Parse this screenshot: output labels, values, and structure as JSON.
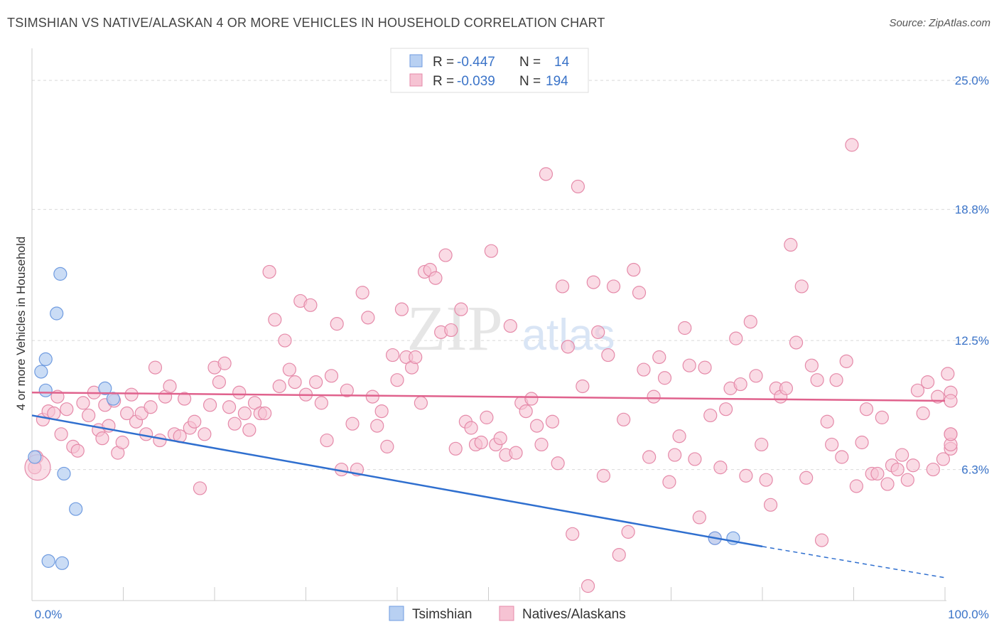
{
  "title": "TSIMSHIAN VS NATIVE/ALASKAN 4 OR MORE VEHICLES IN HOUSEHOLD CORRELATION CHART",
  "source": "Source: ZipAtlas.com",
  "watermark": {
    "zip": "ZIP",
    "atlas": "atlas"
  },
  "colors": {
    "blue_fill": "#b8d0f2",
    "blue_stroke": "#6f9be0",
    "blue_line": "#2f6fcf",
    "pink_fill": "#f6c3d3",
    "pink_stroke": "#e58aa9",
    "pink_line": "#e0628d",
    "grid": "#d9d9d9",
    "axis_text": "#3a73c8"
  },
  "legend": {
    "rows": [
      {
        "r_label": "R =",
        "r_value": "-0.447",
        "n_label": "N =",
        "n_value": "14"
      },
      {
        "r_label": "R =",
        "r_value": "-0.039",
        "n_label": "N =",
        "n_value": "194"
      }
    ],
    "bottom": [
      "Tsimshian",
      "Natives/Alaskans"
    ]
  },
  "chart_data": {
    "type": "scatter",
    "xlabel": "",
    "ylabel": "4 or more Vehicles in Household",
    "xlim": [
      0,
      100
    ],
    "ylim": [
      0,
      26.2
    ],
    "x_tick_labels": [
      {
        "v": 0,
        "label": "0.0%"
      },
      {
        "v": 100,
        "label": "100.0%"
      }
    ],
    "y_ticks": [
      {
        "v": 6.3,
        "label": "6.3%"
      },
      {
        "v": 12.5,
        "label": "12.5%"
      },
      {
        "v": 18.8,
        "label": "18.8%"
      },
      {
        "v": 25.0,
        "label": "25.0%"
      }
    ],
    "grid": true,
    "series": [
      {
        "name": "Tsimshian",
        "color": "#b8d0f2",
        "points": [
          [
            0.3,
            6.9
          ],
          [
            1.5,
            10.1
          ],
          [
            1.0,
            11.0
          ],
          [
            1.5,
            11.6
          ],
          [
            2.7,
            13.8
          ],
          [
            3.1,
            15.7
          ],
          [
            3.5,
            6.1
          ],
          [
            4.8,
            4.4
          ],
          [
            8.0,
            10.2
          ],
          [
            8.9,
            9.7
          ],
          [
            1.8,
            1.9
          ],
          [
            3.3,
            1.8
          ],
          [
            74.8,
            3.0
          ],
          [
            76.8,
            3.0
          ]
        ],
        "trend": {
          "x0": 0,
          "y0": 8.9,
          "x1": 80,
          "y1": 2.6,
          "dash_to": 100,
          "dash_y": 1.1
        }
      },
      {
        "name": "Natives/Alaskans",
        "color": "#f6c3d3",
        "points": [
          [
            0.3,
            6.4
          ],
          [
            0.5,
            6.9
          ],
          [
            1.2,
            8.7
          ],
          [
            1.8,
            9.1
          ],
          [
            2.4,
            9.0
          ],
          [
            2.8,
            9.8
          ],
          [
            3.2,
            8.0
          ],
          [
            3.8,
            9.2
          ],
          [
            4.5,
            7.4
          ],
          [
            5.0,
            7.2
          ],
          [
            5.6,
            9.5
          ],
          [
            6.2,
            8.9
          ],
          [
            6.8,
            10.0
          ],
          [
            7.3,
            8.2
          ],
          [
            7.7,
            7.8
          ],
          [
            8.0,
            9.4
          ],
          [
            8.4,
            8.4
          ],
          [
            9.0,
            9.6
          ],
          [
            9.4,
            7.1
          ],
          [
            9.9,
            7.6
          ],
          [
            10.4,
            9.0
          ],
          [
            10.9,
            9.9
          ],
          [
            11.4,
            8.6
          ],
          [
            12.0,
            9.0
          ],
          [
            12.5,
            8.0
          ],
          [
            13.0,
            9.3
          ],
          [
            13.5,
            11.2
          ],
          [
            14.0,
            7.7
          ],
          [
            14.6,
            9.8
          ],
          [
            15.1,
            10.3
          ],
          [
            15.6,
            8.0
          ],
          [
            16.2,
            7.9
          ],
          [
            16.7,
            9.7
          ],
          [
            17.3,
            8.3
          ],
          [
            17.8,
            8.6
          ],
          [
            18.4,
            5.4
          ],
          [
            18.9,
            8.0
          ],
          [
            19.5,
            9.4
          ],
          [
            20.0,
            11.2
          ],
          [
            20.5,
            10.5
          ],
          [
            21.1,
            11.4
          ],
          [
            21.6,
            9.3
          ],
          [
            22.2,
            8.5
          ],
          [
            22.7,
            10.0
          ],
          [
            23.3,
            9.0
          ],
          [
            23.8,
            8.2
          ],
          [
            24.4,
            9.5
          ],
          [
            25.0,
            9.0
          ],
          [
            25.5,
            9.0
          ],
          [
            26.0,
            15.8
          ],
          [
            26.6,
            13.5
          ],
          [
            27.1,
            10.3
          ],
          [
            27.7,
            12.5
          ],
          [
            28.2,
            11.1
          ],
          [
            28.8,
            10.5
          ],
          [
            29.4,
            14.4
          ],
          [
            30.0,
            9.9
          ],
          [
            30.5,
            14.2
          ],
          [
            31.1,
            10.5
          ],
          [
            31.7,
            9.5
          ],
          [
            32.3,
            7.7
          ],
          [
            32.8,
            10.8
          ],
          [
            33.4,
            13.3
          ],
          [
            33.9,
            6.3
          ],
          [
            34.5,
            10.1
          ],
          [
            35.1,
            8.5
          ],
          [
            35.6,
            6.3
          ],
          [
            36.2,
            14.8
          ],
          [
            36.8,
            13.6
          ],
          [
            37.3,
            9.8
          ],
          [
            37.8,
            8.4
          ],
          [
            38.3,
            9.1
          ],
          [
            38.9,
            7.4
          ],
          [
            39.5,
            11.8
          ],
          [
            40.0,
            10.6
          ],
          [
            40.5,
            14.0
          ],
          [
            41.0,
            11.7
          ],
          [
            41.6,
            11.2
          ],
          [
            42.0,
            11.7
          ],
          [
            42.6,
            9.5
          ],
          [
            43.0,
            15.8
          ],
          [
            43.6,
            15.9
          ],
          [
            44.2,
            15.5
          ],
          [
            44.8,
            12.9
          ],
          [
            45.3,
            16.6
          ],
          [
            45.9,
            13.0
          ],
          [
            46.4,
            7.3
          ],
          [
            47.0,
            14.0
          ],
          [
            47.5,
            8.6
          ],
          [
            48.1,
            8.3
          ],
          [
            48.6,
            7.5
          ],
          [
            49.2,
            7.6
          ],
          [
            49.8,
            8.8
          ],
          [
            50.3,
            16.8
          ],
          [
            50.8,
            7.5
          ],
          [
            51.3,
            7.8
          ],
          [
            51.9,
            7.0
          ],
          [
            52.4,
            13.2
          ],
          [
            53.0,
            7.1
          ],
          [
            53.6,
            9.5
          ],
          [
            54.1,
            9.1
          ],
          [
            54.7,
            9.7
          ],
          [
            55.3,
            8.4
          ],
          [
            55.8,
            7.5
          ],
          [
            56.3,
            20.5
          ],
          [
            57.0,
            8.6
          ],
          [
            57.6,
            6.6
          ],
          [
            58.1,
            15.1
          ],
          [
            58.7,
            12.2
          ],
          [
            59.2,
            3.2
          ],
          [
            59.8,
            19.9
          ],
          [
            60.3,
            10.3
          ],
          [
            60.9,
            0.7
          ],
          [
            61.5,
            15.3
          ],
          [
            62.0,
            12.9
          ],
          [
            62.6,
            6.0
          ],
          [
            63.1,
            11.8
          ],
          [
            63.7,
            15.1
          ],
          [
            64.3,
            2.2
          ],
          [
            64.8,
            8.7
          ],
          [
            65.3,
            3.3
          ],
          [
            65.9,
            15.9
          ],
          [
            66.5,
            14.8
          ],
          [
            67.0,
            11.1
          ],
          [
            67.6,
            6.9
          ],
          [
            68.1,
            9.8
          ],
          [
            68.7,
            11.7
          ],
          [
            69.3,
            10.7
          ],
          [
            69.8,
            5.7
          ],
          [
            70.4,
            7.0
          ],
          [
            70.9,
            7.9
          ],
          [
            71.5,
            13.1
          ],
          [
            72.0,
            11.3
          ],
          [
            72.6,
            6.8
          ],
          [
            73.1,
            4.0
          ],
          [
            73.7,
            11.2
          ],
          [
            74.3,
            8.9
          ],
          [
            74.8,
            3.0
          ],
          [
            75.4,
            6.4
          ],
          [
            76.0,
            9.2
          ],
          [
            76.5,
            10.2
          ],
          [
            77.1,
            12.6
          ],
          [
            77.6,
            10.4
          ],
          [
            78.2,
            6.0
          ],
          [
            78.7,
            13.4
          ],
          [
            79.3,
            10.8
          ],
          [
            79.9,
            7.5
          ],
          [
            80.4,
            5.8
          ],
          [
            80.9,
            4.6
          ],
          [
            81.5,
            10.2
          ],
          [
            82.0,
            9.8
          ],
          [
            82.6,
            10.2
          ],
          [
            83.1,
            17.1
          ],
          [
            83.7,
            12.4
          ],
          [
            84.3,
            15.1
          ],
          [
            84.8,
            5.9
          ],
          [
            85.4,
            11.3
          ],
          [
            86.0,
            10.6
          ],
          [
            86.5,
            2.9
          ],
          [
            87.1,
            8.6
          ],
          [
            87.6,
            7.5
          ],
          [
            88.1,
            10.6
          ],
          [
            88.7,
            6.9
          ],
          [
            89.2,
            11.5
          ],
          [
            89.8,
            21.9
          ],
          [
            90.3,
            5.5
          ],
          [
            90.9,
            7.6
          ],
          [
            91.4,
            9.2
          ],
          [
            92.0,
            6.1
          ],
          [
            92.6,
            6.1
          ],
          [
            93.1,
            8.8
          ],
          [
            93.7,
            5.6
          ],
          [
            94.2,
            6.5
          ],
          [
            94.8,
            6.3
          ],
          [
            95.3,
            7.0
          ],
          [
            95.9,
            5.8
          ],
          [
            96.5,
            6.5
          ],
          [
            97.0,
            10.1
          ],
          [
            97.6,
            9.0
          ],
          [
            98.1,
            10.5
          ],
          [
            98.7,
            6.3
          ],
          [
            99.2,
            9.8
          ],
          [
            99.8,
            6.8
          ],
          [
            100.3,
            10.9
          ],
          [
            100.9,
            7.3
          ],
          [
            101.4,
            8.0
          ],
          [
            102.0,
            7.5
          ],
          [
            102.5,
            8.0
          ],
          [
            103.1,
            10.0
          ],
          [
            103.6,
            9.6
          ]
        ],
        "trend": {
          "x0": 0,
          "y0": 10.0,
          "x1": 100,
          "y1": 9.6
        }
      }
    ]
  }
}
